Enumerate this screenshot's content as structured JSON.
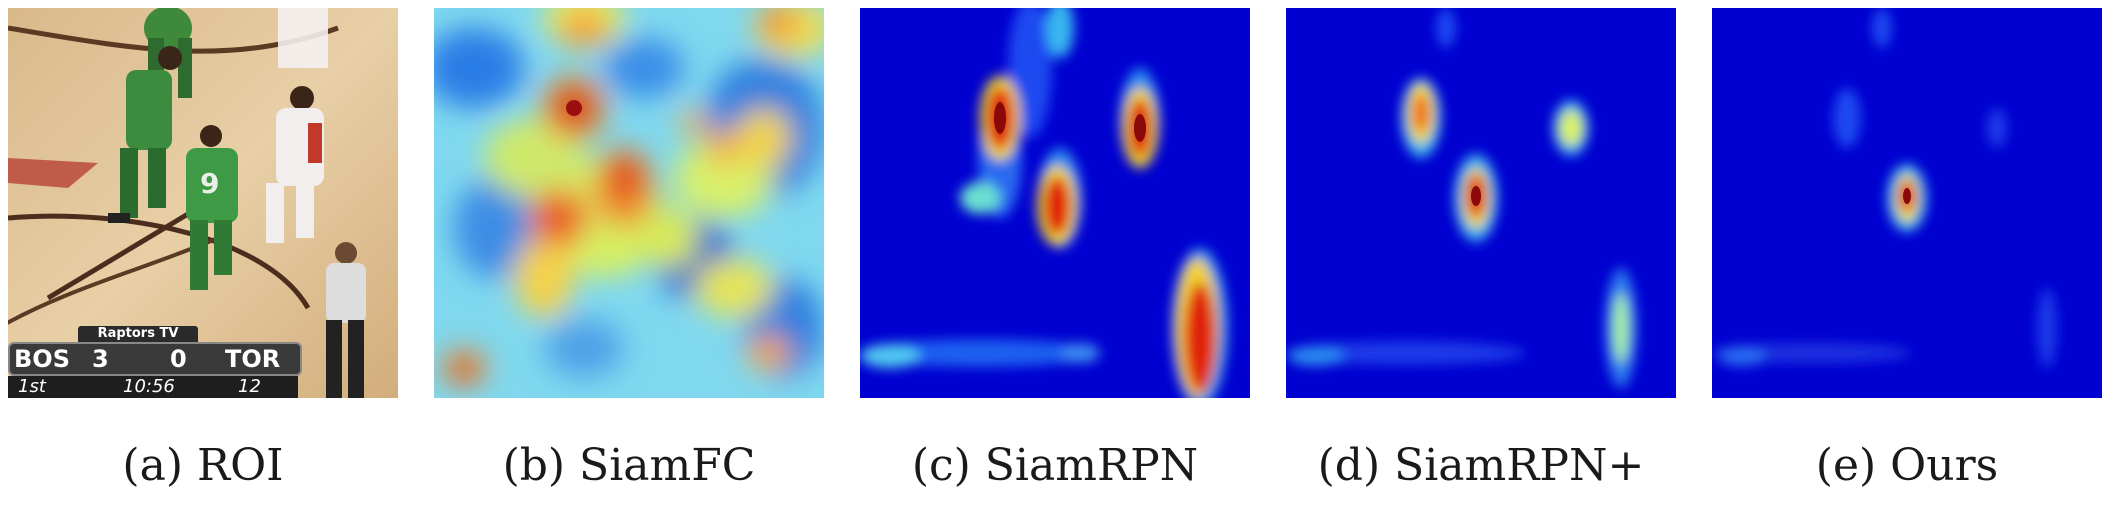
{
  "figure": {
    "panels": [
      {
        "caption": "(a) ROI"
      },
      {
        "caption": "(b) SiamFC"
      },
      {
        "caption": "(c) SiamRPN"
      },
      {
        "caption": "(d) SiamRPN+"
      },
      {
        "caption": "(e) Ours"
      }
    ],
    "scoreboard": {
      "network": "Raptors TV",
      "home_team": "BOS",
      "home_score": "3",
      "away_score": "0",
      "away_team": "TOR",
      "period": "1st",
      "clock": "10:56",
      "shot_clock": "12",
      "jersey_number": "9"
    }
  }
}
